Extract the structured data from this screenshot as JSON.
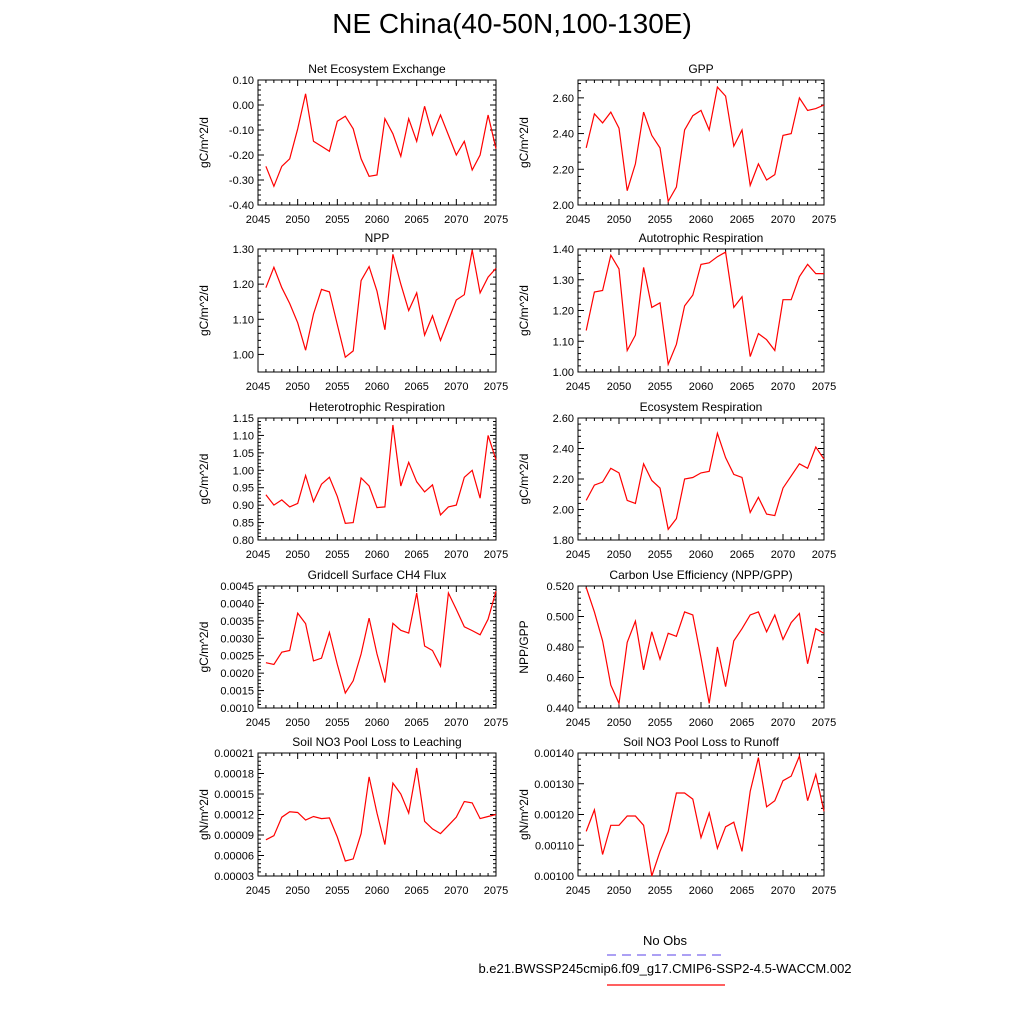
{
  "figure_title": "NE China(40-50N,100-130E)",
  "legend": {
    "entries": [
      {
        "label": "No Obs",
        "color": "#7b68ee",
        "dash": true
      },
      {
        "label": "b.e21.BWSSP245cmip6.f09_g17.CMIP6-SSP2-4.5-WACCM.002",
        "color": "#ff0000",
        "dash": false
      }
    ]
  },
  "colors": {
    "series": "#ff0000",
    "axis": "#000000",
    "obs": "#7b68ee"
  },
  "chart_data": [
    {
      "type": "line",
      "title": "Net Ecosystem Exchange",
      "xlabel": "",
      "ylabel": "gC/m^2/d",
      "xlim": [
        2045,
        2075
      ],
      "ylim": [
        -0.4,
        0.1
      ],
      "yticks": [
        "-0.40",
        "-0.30",
        "-0.20",
        "-0.10",
        "0.00",
        "0.10"
      ],
      "xticks": [
        "2045",
        "2050",
        "2055",
        "2060",
        "2065",
        "2070",
        "2075"
      ],
      "x": [
        2046,
        2047,
        2048,
        2049,
        2050,
        2051,
        2052,
        2053,
        2054,
        2055,
        2056,
        2057,
        2058,
        2059,
        2060,
        2061,
        2062,
        2063,
        2064,
        2065,
        2066,
        2067,
        2068,
        2069,
        2070,
        2071,
        2072,
        2073,
        2074,
        2075
      ],
      "series": [
        {
          "values": [
            -0.245,
            -0.325,
            -0.245,
            -0.215,
            -0.095,
            0.045,
            -0.145,
            -0.165,
            -0.185,
            -0.065,
            -0.045,
            -0.095,
            -0.215,
            -0.285,
            -0.28,
            -0.055,
            -0.115,
            -0.205,
            -0.055,
            -0.145,
            -0.005,
            -0.12,
            -0.04,
            -0.12,
            -0.2,
            -0.145,
            -0.26,
            -0.2,
            -0.04,
            -0.175
          ]
        }
      ]
    },
    {
      "type": "line",
      "title": "GPP",
      "xlabel": "",
      "ylabel": "gC/m^2/d",
      "xlim": [
        2045,
        2075
      ],
      "ylim": [
        2.0,
        2.7
      ],
      "yticks": [
        "2.00",
        "2.20",
        "2.40",
        "2.60"
      ],
      "xticks": [
        "2045",
        "2050",
        "2055",
        "2060",
        "2065",
        "2070",
        "2075"
      ],
      "x": [
        2046,
        2047,
        2048,
        2049,
        2050,
        2051,
        2052,
        2053,
        2054,
        2055,
        2056,
        2057,
        2058,
        2059,
        2060,
        2061,
        2062,
        2063,
        2064,
        2065,
        2066,
        2067,
        2068,
        2069,
        2070,
        2071,
        2072,
        2073,
        2074,
        2075
      ],
      "series": [
        {
          "values": [
            2.32,
            2.51,
            2.46,
            2.52,
            2.43,
            2.08,
            2.23,
            2.52,
            2.39,
            2.32,
            2.02,
            2.1,
            2.42,
            2.5,
            2.53,
            2.42,
            2.66,
            2.61,
            2.33,
            2.42,
            2.11,
            2.23,
            2.14,
            2.17,
            2.39,
            2.4,
            2.6,
            2.53,
            2.54,
            2.56
          ]
        }
      ]
    },
    {
      "type": "line",
      "title": "NPP",
      "xlabel": "",
      "ylabel": "gC/m^2/d",
      "xlim": [
        2045,
        2075
      ],
      "ylim": [
        0.95,
        1.3
      ],
      "yticks": [
        "1.00",
        "1.10",
        "1.20",
        "1.30"
      ],
      "xticks": [
        "2045",
        "2050",
        "2055",
        "2060",
        "2065",
        "2070",
        "2075"
      ],
      "x": [
        2046,
        2047,
        2048,
        2049,
        2050,
        2051,
        2052,
        2053,
        2054,
        2055,
        2056,
        2057,
        2058,
        2059,
        2060,
        2061,
        2062,
        2063,
        2064,
        2065,
        2066,
        2067,
        2068,
        2069,
        2070,
        2071,
        2072,
        2073,
        2074,
        2075
      ],
      "series": [
        {
          "values": [
            1.19,
            1.248,
            1.19,
            1.145,
            1.09,
            1.012,
            1.115,
            1.185,
            1.178,
            1.085,
            0.992,
            1.01,
            1.21,
            1.25,
            1.18,
            1.07,
            1.285,
            1.2,
            1.125,
            1.175,
            1.055,
            1.11,
            1.04,
            1.098,
            1.155,
            1.17,
            1.297,
            1.175,
            1.22,
            1.245
          ]
        }
      ]
    },
    {
      "type": "line",
      "title": "Autotrophic Respiration",
      "xlabel": "",
      "ylabel": "gC/m^2/d",
      "xlim": [
        2045,
        2075
      ],
      "ylim": [
        1.0,
        1.4
      ],
      "yticks": [
        "1.00",
        "1.10",
        "1.20",
        "1.30",
        "1.40"
      ],
      "xticks": [
        "2045",
        "2050",
        "2055",
        "2060",
        "2065",
        "2070",
        "2075"
      ],
      "x": [
        2046,
        2047,
        2048,
        2049,
        2050,
        2051,
        2052,
        2053,
        2054,
        2055,
        2056,
        2057,
        2058,
        2059,
        2060,
        2061,
        2062,
        2063,
        2064,
        2065,
        2066,
        2067,
        2068,
        2069,
        2070,
        2071,
        2072,
        2073,
        2074,
        2075
      ],
      "series": [
        {
          "values": [
            1.135,
            1.26,
            1.265,
            1.38,
            1.335,
            1.07,
            1.12,
            1.34,
            1.21,
            1.225,
            1.025,
            1.09,
            1.215,
            1.25,
            1.35,
            1.355,
            1.375,
            1.39,
            1.21,
            1.245,
            1.05,
            1.125,
            1.105,
            1.07,
            1.235,
            1.235,
            1.31,
            1.35,
            1.32,
            1.32
          ]
        }
      ]
    },
    {
      "type": "line",
      "title": "Heterotrophic Respiration",
      "xlabel": "",
      "ylabel": "gC/m^2/d",
      "xlim": [
        2045,
        2075
      ],
      "ylim": [
        0.8,
        1.15
      ],
      "yticks": [
        "0.80",
        "0.85",
        "0.90",
        "0.95",
        "1.00",
        "1.05",
        "1.10",
        "1.15"
      ],
      "xticks": [
        "2045",
        "2050",
        "2055",
        "2060",
        "2065",
        "2070",
        "2075"
      ],
      "x": [
        2046,
        2047,
        2048,
        2049,
        2050,
        2051,
        2052,
        2053,
        2054,
        2055,
        2056,
        2057,
        2058,
        2059,
        2060,
        2061,
        2062,
        2063,
        2064,
        2065,
        2066,
        2067,
        2068,
        2069,
        2070,
        2071,
        2072,
        2073,
        2074,
        2075
      ],
      "series": [
        {
          "values": [
            0.93,
            0.9,
            0.915,
            0.895,
            0.905,
            0.985,
            0.91,
            0.96,
            0.98,
            0.925,
            0.848,
            0.85,
            0.978,
            0.955,
            0.893,
            0.895,
            1.13,
            0.955,
            1.023,
            0.967,
            0.938,
            0.958,
            0.872,
            0.895,
            0.9,
            0.98,
            1.0,
            0.92,
            1.1,
            1.03
          ]
        }
      ]
    },
    {
      "type": "line",
      "title": "Ecosystem Respiration",
      "xlabel": "",
      "ylabel": "gC/m^2/d",
      "xlim": [
        2045,
        2075
      ],
      "ylim": [
        1.8,
        2.6
      ],
      "yticks": [
        "1.80",
        "2.00",
        "2.20",
        "2.40",
        "2.60"
      ],
      "xticks": [
        "2045",
        "2050",
        "2055",
        "2060",
        "2065",
        "2070",
        "2075"
      ],
      "x": [
        2046,
        2047,
        2048,
        2049,
        2050,
        2051,
        2052,
        2053,
        2054,
        2055,
        2056,
        2057,
        2058,
        2059,
        2060,
        2061,
        2062,
        2063,
        2064,
        2065,
        2066,
        2067,
        2068,
        2069,
        2070,
        2071,
        2072,
        2073,
        2074,
        2075
      ],
      "series": [
        {
          "values": [
            2.06,
            2.16,
            2.18,
            2.27,
            2.24,
            2.06,
            2.04,
            2.3,
            2.19,
            2.14,
            1.87,
            1.94,
            2.2,
            2.21,
            2.24,
            2.25,
            2.5,
            2.34,
            2.23,
            2.21,
            1.98,
            2.08,
            1.97,
            1.96,
            2.14,
            2.22,
            2.3,
            2.27,
            2.41,
            2.33
          ]
        }
      ]
    },
    {
      "type": "line",
      "title": "Gridcell Surface CH4 Flux",
      "xlabel": "",
      "ylabel": "gC/m^2/d",
      "xlim": [
        2045,
        2075
      ],
      "ylim": [
        0.001,
        0.0045
      ],
      "yticks": [
        "0.0010",
        "0.0015",
        "0.0020",
        "0.0025",
        "0.0030",
        "0.0035",
        "0.0040",
        "0.0045"
      ],
      "xticks": [
        "2045",
        "2050",
        "2055",
        "2060",
        "2065",
        "2070",
        "2075"
      ],
      "x": [
        2046,
        2047,
        2048,
        2049,
        2050,
        2051,
        2052,
        2053,
        2054,
        2055,
        2056,
        2057,
        2058,
        2059,
        2060,
        2061,
        2062,
        2063,
        2064,
        2065,
        2066,
        2067,
        2068,
        2069,
        2070,
        2071,
        2072,
        2073,
        2074,
        2075
      ],
      "series": [
        {
          "values": [
            0.0023,
            0.00225,
            0.0026,
            0.00265,
            0.00372,
            0.00342,
            0.00235,
            0.00243,
            0.00317,
            0.00225,
            0.00143,
            0.00178,
            0.00255,
            0.00358,
            0.00255,
            0.00173,
            0.00343,
            0.00323,
            0.00315,
            0.0043,
            0.00278,
            0.00265,
            0.0022,
            0.0043,
            0.00383,
            0.00333,
            0.00322,
            0.0031,
            0.00355,
            0.00435
          ]
        }
      ]
    },
    {
      "type": "line",
      "title": "Carbon Use Efficiency (NPP/GPP)",
      "xlabel": "",
      "ylabel": "NPP/GPP",
      "xlim": [
        2045,
        2075
      ],
      "ylim": [
        0.44,
        0.52
      ],
      "yticks": [
        "0.440",
        "0.460",
        "0.480",
        "0.500",
        "0.520"
      ],
      "xticks": [
        "2045",
        "2050",
        "2055",
        "2060",
        "2065",
        "2070",
        "2075"
      ],
      "x": [
        2046,
        2047,
        2048,
        2049,
        2050,
        2051,
        2052,
        2053,
        2054,
        2055,
        2056,
        2057,
        2058,
        2059,
        2060,
        2061,
        2062,
        2063,
        2064,
        2065,
        2066,
        2067,
        2068,
        2069,
        2070,
        2071,
        2072,
        2073,
        2074,
        2075
      ],
      "series": [
        {
          "values": [
            0.519,
            0.503,
            0.484,
            0.455,
            0.443,
            0.483,
            0.497,
            0.465,
            0.49,
            0.472,
            0.489,
            0.487,
            0.503,
            0.501,
            0.473,
            0.443,
            0.48,
            0.454,
            0.484,
            0.492,
            0.501,
            0.503,
            0.49,
            0.501,
            0.485,
            0.496,
            0.502,
            0.469,
            0.492,
            0.489
          ]
        }
      ]
    },
    {
      "type": "line",
      "title": "Soil NO3 Pool Loss to Leaching",
      "xlabel": "",
      "ylabel": "gN/m^2/d",
      "xlim": [
        2045,
        2075
      ],
      "ylim": [
        3e-05,
        0.00021
      ],
      "yticks": [
        "0.00003",
        "0.00006",
        "0.00009",
        "0.00012",
        "0.00015",
        "0.00018",
        "0.00021"
      ],
      "xticks": [
        "2045",
        "2050",
        "2055",
        "2060",
        "2065",
        "2070",
        "2075"
      ],
      "x": [
        2046,
        2047,
        2048,
        2049,
        2050,
        2051,
        2052,
        2053,
        2054,
        2055,
        2056,
        2057,
        2058,
        2059,
        2060,
        2061,
        2062,
        2063,
        2064,
        2065,
        2066,
        2067,
        2068,
        2069,
        2070,
        2071,
        2072,
        2073,
        2074,
        2075
      ],
      "series": [
        {
          "values": [
            8.3e-05,
            8.9e-05,
            0.000116,
            0.000124,
            0.000123,
            0.000112,
            0.000117,
            0.000114,
            0.000115,
            8.7e-05,
            5.2e-05,
            5.5e-05,
            9.2e-05,
            0.000175,
            0.000122,
            7.6e-05,
            0.000166,
            0.00015,
            0.000122,
            0.000188,
            0.00011,
            9.9e-05,
            9.2e-05,
            0.000104,
            0.000116,
            0.000139,
            0.000137,
            0.000114,
            0.000117,
            0.00012
          ]
        }
      ]
    },
    {
      "type": "line",
      "title": "Soil NO3 Pool Loss to Runoff",
      "xlabel": "",
      "ylabel": "gN/m^2/d",
      "xlim": [
        2045,
        2075
      ],
      "ylim": [
        0.001,
        0.0014
      ],
      "yticks": [
        "0.00100",
        "0.00110",
        "0.00120",
        "0.00130",
        "0.00140"
      ],
      "xticks": [
        "2045",
        "2050",
        "2055",
        "2060",
        "2065",
        "2070",
        "2075"
      ],
      "x": [
        2046,
        2047,
        2048,
        2049,
        2050,
        2051,
        2052,
        2053,
        2054,
        2055,
        2056,
        2057,
        2058,
        2059,
        2060,
        2061,
        2062,
        2063,
        2064,
        2065,
        2066,
        2067,
        2068,
        2069,
        2070,
        2071,
        2072,
        2073,
        2074,
        2075
      ],
      "series": [
        {
          "values": [
            0.001145,
            0.001215,
            0.00107,
            0.001165,
            0.001165,
            0.001195,
            0.001195,
            0.001165,
            0.001,
            0.00108,
            0.001145,
            0.00127,
            0.00127,
            0.00125,
            0.001125,
            0.001205,
            0.00109,
            0.00116,
            0.001175,
            0.00108,
            0.001275,
            0.001385,
            0.001225,
            0.001245,
            0.00131,
            0.001325,
            0.00139,
            0.001245,
            0.00133,
            0.00121
          ]
        }
      ]
    }
  ]
}
